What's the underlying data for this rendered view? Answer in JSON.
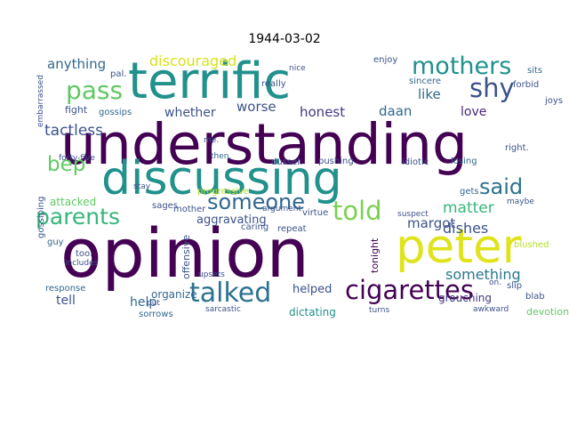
{
  "title": "1944-03-02",
  "words": [
    {
      "t": "understanding",
      "c": "#440154"
    },
    {
      "t": "opinion",
      "c": "#440154"
    },
    {
      "t": "terrific",
      "c": "#21918c"
    },
    {
      "t": "discussing",
      "c": "#21918c"
    },
    {
      "t": "peter",
      "c": "#e0e31c"
    },
    {
      "t": "cigarettes",
      "c": "#440154"
    },
    {
      "t": "talked",
      "c": "#2c728e"
    },
    {
      "t": "told",
      "c": "#7ad151"
    },
    {
      "t": "parents",
      "c": "#35b779"
    },
    {
      "t": "mothers",
      "c": "#21918c"
    },
    {
      "t": "pass",
      "c": "#5ec962"
    },
    {
      "t": "said",
      "c": "#2c728e"
    },
    {
      "t": "shy",
      "c": "#3b528b"
    },
    {
      "t": "someone",
      "c": "#31688e"
    },
    {
      "t": "bep",
      "c": "#5ec962"
    },
    {
      "t": "tactless",
      "c": "#3b528b"
    },
    {
      "t": "discouraged",
      "c": "#d8e219"
    },
    {
      "t": "anything",
      "c": "#31688e"
    },
    {
      "t": "something",
      "c": "#2a788e"
    },
    {
      "t": "margot",
      "c": "#3b528b"
    },
    {
      "t": "matter",
      "c": "#35b779"
    },
    {
      "t": "dishes",
      "c": "#3b528b"
    },
    {
      "t": "honest",
      "c": "#443983"
    },
    {
      "t": "daan",
      "c": "#31688e"
    },
    {
      "t": "whether",
      "c": "#3b528b"
    },
    {
      "t": "worse",
      "c": "#3b528b"
    },
    {
      "t": "like",
      "c": "#31688e"
    },
    {
      "t": "love",
      "c": "#482878"
    },
    {
      "t": "tell",
      "c": "#3b528b"
    },
    {
      "t": "help",
      "c": "#31688e"
    },
    {
      "t": "attacked",
      "c": "#5ec962"
    },
    {
      "t": "aggravating",
      "c": "#3b528b"
    },
    {
      "t": "organize",
      "c": "#31688e"
    },
    {
      "t": "offensive",
      "c": "#3b528b"
    },
    {
      "t": "dictating",
      "c": "#21918c"
    },
    {
      "t": "helped",
      "c": "#3b528b"
    },
    {
      "t": "grouching",
      "c": "#443983"
    },
    {
      "t": "devotion",
      "c": "#5ec962"
    },
    {
      "t": "tonight",
      "c": "#440154"
    },
    {
      "t": "fight",
      "c": "#3b528b"
    },
    {
      "t": "gossips",
      "c": "#31688e"
    },
    {
      "t": "gossiping",
      "c": "#3b528b"
    },
    {
      "t": "response",
      "c": "#31688e"
    },
    {
      "t": "progressive",
      "c": "#b5de2b"
    },
    {
      "t": "dussel.",
      "c": "#3b528b"
    },
    {
      "t": "pushing",
      "c": "#3b528b"
    },
    {
      "t": "idiotic",
      "c": "#3b528b"
    },
    {
      "t": "losing",
      "c": "#31688e"
    },
    {
      "t": "sorrows",
      "c": "#31688e"
    },
    {
      "t": "blab",
      "c": "#3b528b"
    },
    {
      "t": "blushed",
      "c": "#b5de2b"
    },
    {
      "t": "repeat",
      "c": "#3b528b"
    },
    {
      "t": "virtue",
      "c": "#3b528b"
    },
    {
      "t": "sages",
      "c": "#3b528b"
    },
    {
      "t": "right.",
      "c": "#3b528b"
    },
    {
      "t": "sits",
      "c": "#31688e"
    },
    {
      "t": "forbid",
      "c": "#3b528b"
    },
    {
      "t": "joys",
      "c": "#3b528b"
    },
    {
      "t": "enjoy",
      "c": "#3b528b"
    },
    {
      "t": "sincere",
      "c": "#31688e"
    },
    {
      "t": "really",
      "c": "#3b528b"
    },
    {
      "t": "embarrassed",
      "c": "#3b528b"
    },
    {
      "t": "pal.",
      "c": "#3b528b"
    },
    {
      "t": "guy",
      "c": "#31688e"
    },
    {
      "t": "too.",
      "c": "#3b528b"
    },
    {
      "t": "caring",
      "c": "#3b528b"
    },
    {
      "t": "slip",
      "c": "#3b528b"
    },
    {
      "t": "gets",
      "c": "#31688e"
    },
    {
      "t": "maybe",
      "c": "#3b528b"
    },
    {
      "t": "mother",
      "c": "#3b528b"
    },
    {
      "t": "me.",
      "c": "#3b528b"
    },
    {
      "t": "then.",
      "c": "#31688e"
    },
    {
      "t": "upsets",
      "c": "#3b528b"
    },
    {
      "t": "put",
      "c": "#3b528b"
    },
    {
      "t": "sarcastic",
      "c": "#3b528b"
    },
    {
      "t": "turns",
      "c": "#3b528b"
    },
    {
      "t": "suspect",
      "c": "#3b528b"
    },
    {
      "t": "on.",
      "c": "#3b528b"
    },
    {
      "t": "stay",
      "c": "#3b528b"
    },
    {
      "t": "includes",
      "c": "#3b528b"
    },
    {
      "t": "forty-five",
      "c": "#3b528b"
    },
    {
      "t": "nice",
      "c": "#3b528b"
    },
    {
      "t": "argument",
      "c": "#3b528b"
    },
    {
      "t": "awkward",
      "c": "#3b528b"
    }
  ]
}
